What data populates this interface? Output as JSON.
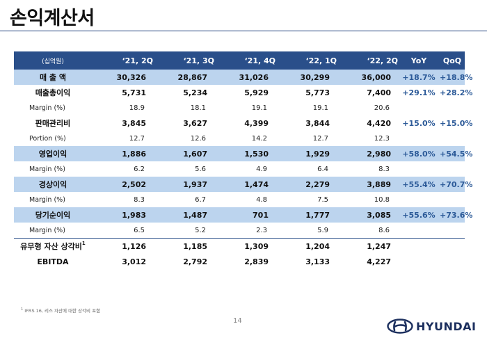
{
  "title": "손익계산서",
  "table": {
    "unit_label": "(십억원)",
    "headers": [
      "‘21, 2Q",
      "‘21, 3Q",
      "‘21, 4Q",
      "‘22, 1Q",
      "‘22, 2Q",
      "YoY",
      "QoQ"
    ],
    "rows": [
      {
        "label": "매 출 액",
        "values": [
          "30,326",
          "28,867",
          "31,026",
          "30,299",
          "36,000"
        ],
        "yoy": "+18.7%",
        "qoq": "+18.8%"
      },
      {
        "label": "매출총이익",
        "values": [
          "5,731",
          "5,234",
          "5,929",
          "5,773",
          "7,400"
        ],
        "yoy": "+29.1%",
        "qoq": "+28.2%"
      },
      {
        "label": "Margin (%)",
        "values": [
          "18.9",
          "18.1",
          "19.1",
          "19.1",
          "20.6"
        ],
        "yoy": "",
        "qoq": ""
      },
      {
        "label": "판매관리비",
        "values": [
          "3,845",
          "3,627",
          "4,399",
          "3,844",
          "4,420"
        ],
        "yoy": "+15.0%",
        "qoq": "+15.0%"
      },
      {
        "label": "Portion (%)",
        "values": [
          "12.7",
          "12.6",
          "14.2",
          "12.7",
          "12.3"
        ],
        "yoy": "",
        "qoq": ""
      },
      {
        "label": "영업이익",
        "values": [
          "1,886",
          "1,607",
          "1,530",
          "1,929",
          "2,980"
        ],
        "yoy": "+58.0%",
        "qoq": "+54.5%"
      },
      {
        "label": "Margin (%)",
        "values": [
          "6.2",
          "5.6",
          "4.9",
          "6.4",
          "8.3"
        ],
        "yoy": "",
        "qoq": ""
      },
      {
        "label": "경상이익",
        "values": [
          "2,502",
          "1,937",
          "1,474",
          "2,279",
          "3,889"
        ],
        "yoy": "+55.4%",
        "qoq": "+70.7%"
      },
      {
        "label": "Margin (%)",
        "values": [
          "8.3",
          "6.7",
          "4.8",
          "7.5",
          "10.8"
        ],
        "yoy": "",
        "qoq": ""
      },
      {
        "label": "당기순이익",
        "values": [
          "1,983",
          "1,487",
          "701",
          "1,777",
          "3,085"
        ],
        "yoy": "+55.6%",
        "qoq": "+73.6%"
      },
      {
        "label": "Margin (%)",
        "values": [
          "6.5",
          "5.2",
          "2.3",
          "5.9",
          "8.6"
        ],
        "yoy": "",
        "qoq": ""
      },
      {
        "label": "유무형 자산 상각비",
        "label_sup": "1",
        "values": [
          "1,126",
          "1,185",
          "1,309",
          "1,204",
          "1,247"
        ],
        "yoy": "",
        "qoq": ""
      },
      {
        "label": "EBITDA",
        "values": [
          "3,012",
          "2,792",
          "2,839",
          "3,133",
          "4,227"
        ],
        "yoy": "",
        "qoq": ""
      }
    ]
  },
  "footnote": {
    "marker": "1",
    "text": "IFRS 16, 리스 자산에 대한 상각비 포함"
  },
  "page_number": "14",
  "logo": {
    "text": "HYUNDAI",
    "icon": "hyundai-logo-icon",
    "color": "#1c2f5e"
  },
  "colors": {
    "header": "#2a4f8a",
    "highlight": "#bcd4ee",
    "pct_text": "#2c5a98"
  }
}
